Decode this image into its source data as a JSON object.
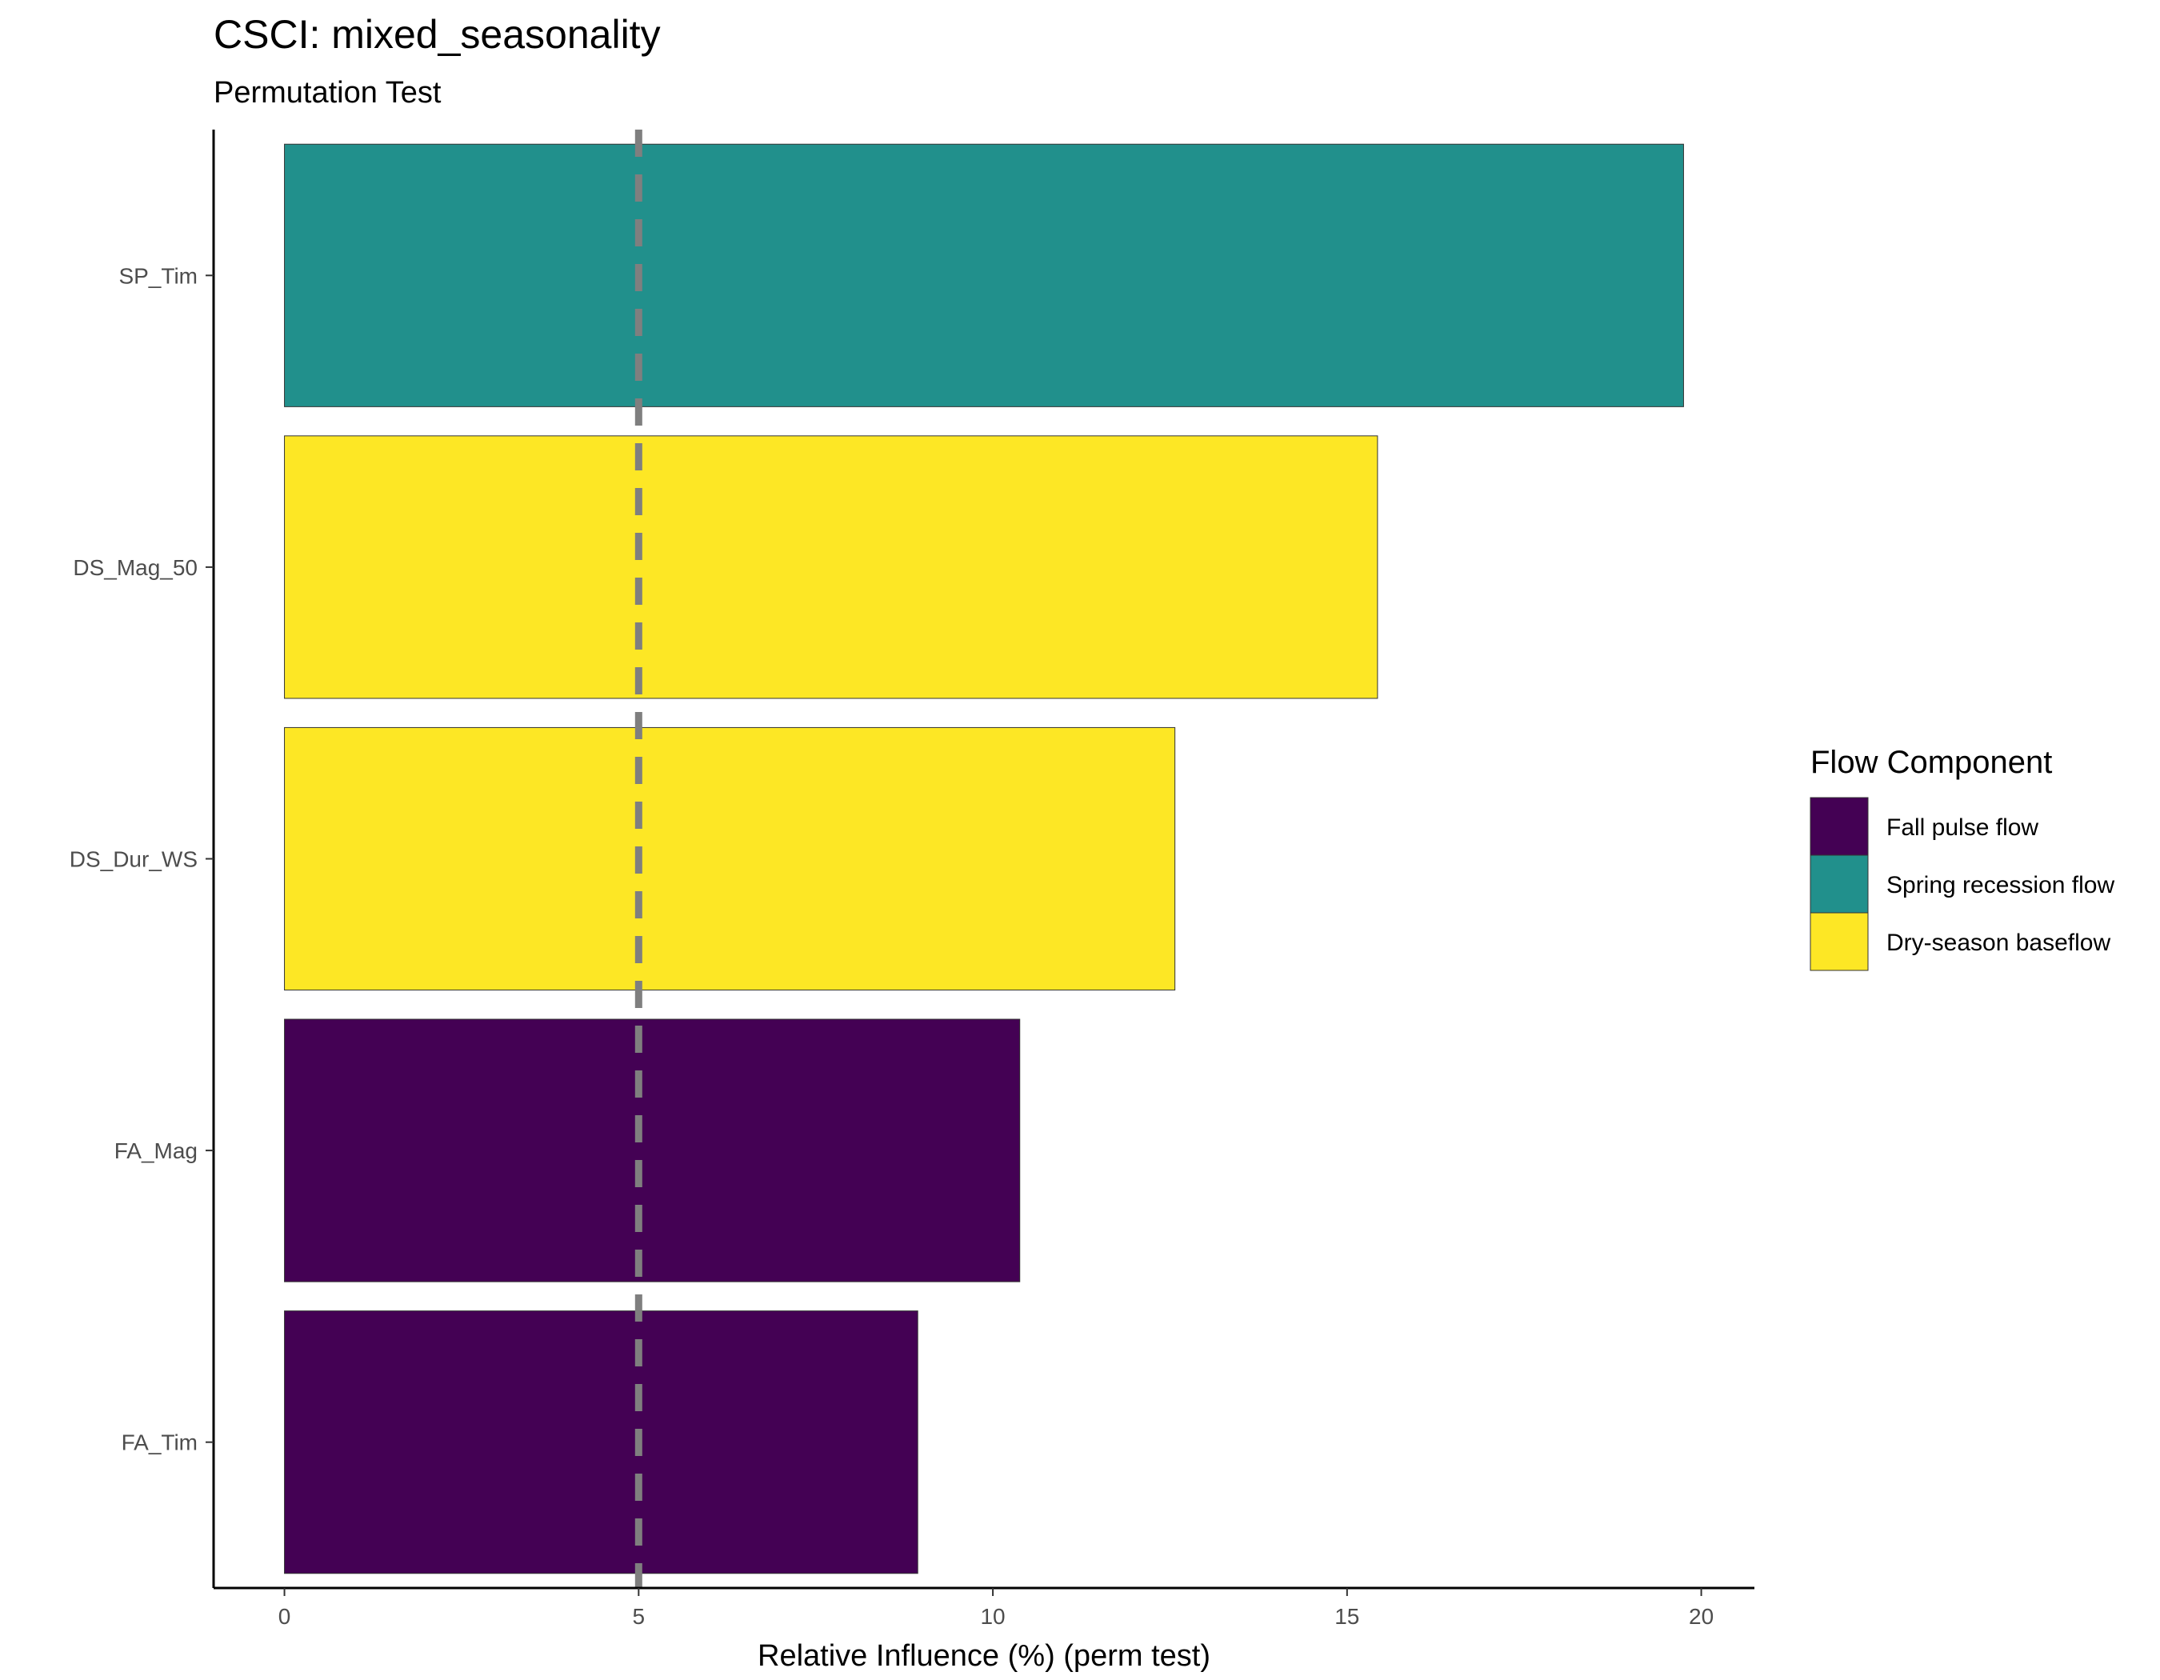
{
  "chart_data": {
    "type": "bar",
    "orientation": "horizontal",
    "title": "CSCI: mixed_seasonality",
    "subtitle": "Permutation Test",
    "xlabel": "Relative Influence (%) (perm test)",
    "ylabel": "",
    "xlim": [
      -1,
      20.75
    ],
    "xticks": [
      0,
      5,
      10,
      15,
      20
    ],
    "categories": [
      "SP_Tim",
      "DS_Mag_50",
      "DS_Dur_WS",
      "FA_Mag",
      "FA_Tim"
    ],
    "values": [
      19.75,
      15.43,
      12.57,
      10.38,
      8.94
    ],
    "components": [
      "Spring recession flow",
      "Dry-season baseflow",
      "Dry-season baseflow",
      "Fall pulse flow",
      "Fall pulse flow"
    ],
    "reference_line": {
      "x": 5,
      "style": "dashed",
      "color": "#7f7f7f"
    },
    "grid": false,
    "legend": {
      "title": "Flow Component",
      "position": "right",
      "entries": [
        {
          "label": "Fall pulse flow",
          "color": "#440154"
        },
        {
          "label": "Spring recession flow",
          "color": "#21908C"
        },
        {
          "label": "Dry-season baseflow",
          "color": "#FDE725"
        }
      ]
    }
  }
}
